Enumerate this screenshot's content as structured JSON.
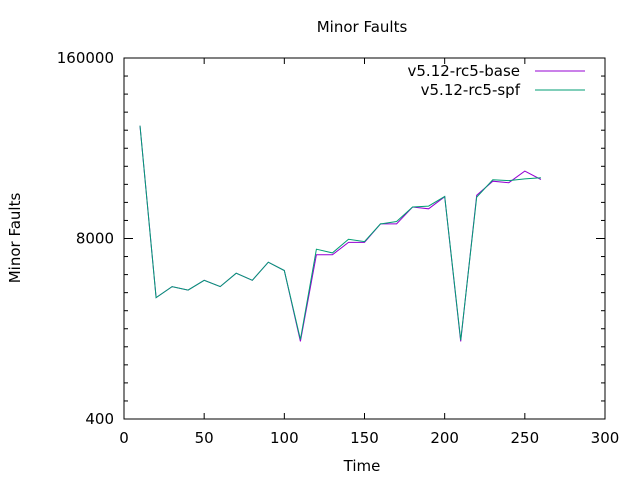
{
  "chart_data": {
    "type": "line",
    "title": "Minor Faults",
    "xlabel": "Time",
    "ylabel": "Minor Faults",
    "xlim": [
      0,
      300
    ],
    "ylim": [
      400,
      160000
    ],
    "y_scale": "log",
    "x_ticks": [
      "0",
      "50",
      "100",
      "150",
      "200",
      "250",
      "300"
    ],
    "y_ticks": [
      "400",
      "8000",
      "160000"
    ],
    "legend_position": "top-right",
    "grid": false,
    "series": [
      {
        "name": "v5.12-rc5-base",
        "color": "#9400d3",
        "x": [
          10,
          20,
          30,
          40,
          50,
          60,
          70,
          80,
          90,
          100,
          110,
          120,
          130,
          140,
          150,
          160,
          170,
          180,
          190,
          200,
          210,
          220,
          230,
          240,
          250,
          260
        ],
        "y": [
          52000,
          3000,
          3600,
          3400,
          4000,
          3600,
          4500,
          4000,
          5400,
          4700,
          1450,
          6100,
          6100,
          7500,
          7500,
          10200,
          10200,
          13500,
          13100,
          16000,
          1450,
          16400,
          20700,
          20200,
          24500,
          21300
        ]
      },
      {
        "name": "v5.12-rc5-spf",
        "color": "#009e73",
        "x": [
          10,
          20,
          30,
          40,
          50,
          60,
          70,
          80,
          90,
          100,
          110,
          120,
          130,
          140,
          150,
          160,
          170,
          180,
          190,
          200,
          210,
          220,
          230,
          240,
          250,
          260
        ],
        "y": [
          52000,
          3000,
          3600,
          3400,
          4000,
          3600,
          4500,
          4000,
          5400,
          4700,
          1500,
          6700,
          6300,
          7900,
          7600,
          10200,
          10600,
          13500,
          13700,
          16100,
          1480,
          15900,
          21200,
          20900,
          21500,
          21900
        ]
      }
    ]
  }
}
